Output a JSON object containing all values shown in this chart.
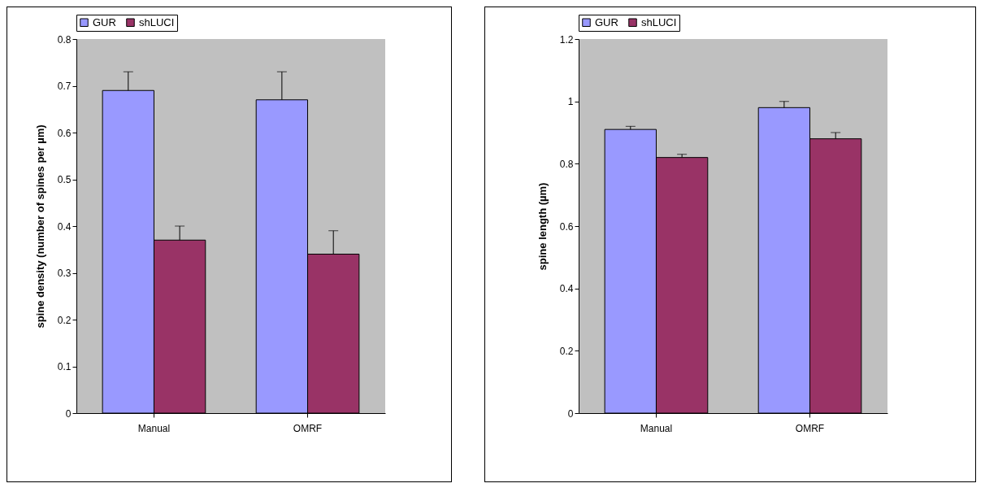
{
  "chart_data": [
    {
      "type": "bar",
      "ylabel": "spine density (number of spines per µm)",
      "categories": [
        "Manual",
        "OMRF"
      ],
      "ylim": [
        0,
        0.8
      ],
      "yticks": [
        0,
        0.1,
        0.2,
        0.3,
        0.4,
        0.5,
        0.6,
        0.7,
        0.8
      ],
      "grid": false,
      "legend": "top",
      "series": [
        {
          "name": "GUR",
          "color": "#9999ff",
          "values": [
            0.69,
            0.67
          ],
          "errors": [
            [
              0.69,
              0.73
            ],
            [
              0.67,
              0.73
            ]
          ]
        },
        {
          "name": "shLUCI",
          "color": "#993366",
          "values": [
            0.37,
            0.34
          ],
          "errors": [
            [
              0.37,
              0.4
            ],
            [
              0.34,
              0.39
            ]
          ]
        }
      ]
    },
    {
      "type": "bar",
      "ylabel": "spine length (µm)",
      "categories": [
        "Manual",
        "OMRF"
      ],
      "ylim": [
        0,
        1.2
      ],
      "yticks": [
        0,
        0.2,
        0.4,
        0.6,
        0.8,
        1,
        1.2
      ],
      "grid": false,
      "legend": "top",
      "series": [
        {
          "name": "GUR",
          "color": "#9999ff",
          "values": [
            0.91,
            0.98
          ],
          "errors": [
            [
              0.91,
              0.92
            ],
            [
              0.98,
              1.0
            ]
          ]
        },
        {
          "name": "shLUCI",
          "color": "#993366",
          "values": [
            0.82,
            0.88
          ],
          "errors": [
            [
              0.82,
              0.83
            ],
            [
              0.88,
              0.9
            ]
          ]
        }
      ]
    }
  ]
}
